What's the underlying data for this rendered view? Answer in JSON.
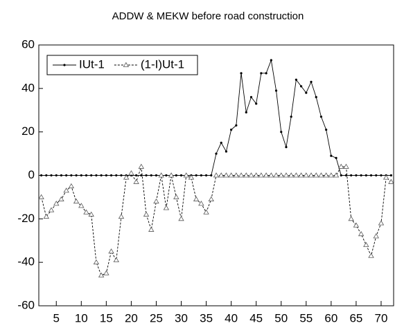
{
  "chart_data": {
    "type": "line",
    "title": "ADDW & MEKW before road construction",
    "x": [
      2,
      3,
      4,
      5,
      6,
      7,
      8,
      9,
      10,
      11,
      12,
      13,
      14,
      15,
      16,
      17,
      18,
      19,
      20,
      21,
      22,
      23,
      24,
      25,
      26,
      27,
      28,
      29,
      30,
      31,
      32,
      33,
      34,
      35,
      36,
      37,
      38,
      39,
      40,
      41,
      42,
      43,
      44,
      45,
      46,
      47,
      48,
      49,
      50,
      51,
      52,
      53,
      54,
      55,
      56,
      57,
      58,
      59,
      60,
      61,
      62,
      63,
      64,
      65,
      66,
      67,
      68,
      69,
      70,
      71,
      72
    ],
    "series": [
      {
        "name": "IUt-1",
        "color": "#000000",
        "dash": "solid",
        "marker": "dot",
        "values": [
          0,
          0,
          0,
          0,
          0,
          0,
          0,
          0,
          0,
          0,
          0,
          0,
          0,
          0,
          0,
          0,
          0,
          0,
          0,
          0,
          0,
          0,
          0,
          0,
          0,
          0,
          0,
          0,
          0,
          0,
          0,
          0,
          0,
          0,
          0,
          10,
          15,
          11,
          21,
          23,
          47,
          29,
          36,
          33,
          47,
          47,
          53,
          39,
          20,
          13,
          27,
          44,
          41,
          38,
          43,
          36,
          27,
          21,
          9,
          8,
          0,
          0,
          0,
          0,
          0,
          0,
          0,
          0,
          0,
          0,
          0
        ]
      },
      {
        "name": "(1-I)Ut-1",
        "color": "#000000",
        "dash": "dashed",
        "marker": "triangle",
        "values": [
          -10,
          -19,
          -16,
          -13,
          -11,
          -7,
          -5,
          -12,
          -14,
          -17,
          -18,
          -40,
          -46,
          -45,
          -35,
          -39,
          -19,
          -1,
          1,
          -3,
          4,
          -18,
          -25,
          -12,
          0,
          -15,
          0,
          -10,
          -20,
          0,
          -1,
          -11,
          -13,
          -17,
          -11,
          0,
          0,
          0,
          0,
          0,
          0,
          0,
          0,
          0,
          0,
          0,
          0,
          0,
          0,
          0,
          0,
          0,
          0,
          0,
          0,
          0,
          0,
          0,
          0,
          0,
          4,
          4,
          -20,
          -23,
          -27,
          -32,
          -37,
          -28,
          -22,
          -1,
          -3
        ]
      }
    ],
    "xlim": [
      1.5,
      72.5
    ],
    "xticks": [
      5,
      10,
      15,
      20,
      25,
      30,
      35,
      40,
      45,
      50,
      55,
      60,
      65,
      70
    ],
    "ylim": [
      -60,
      60
    ],
    "yticks": [
      -60,
      -40,
      -20,
      0,
      20,
      40,
      60
    ],
    "legend": "upper-left"
  }
}
